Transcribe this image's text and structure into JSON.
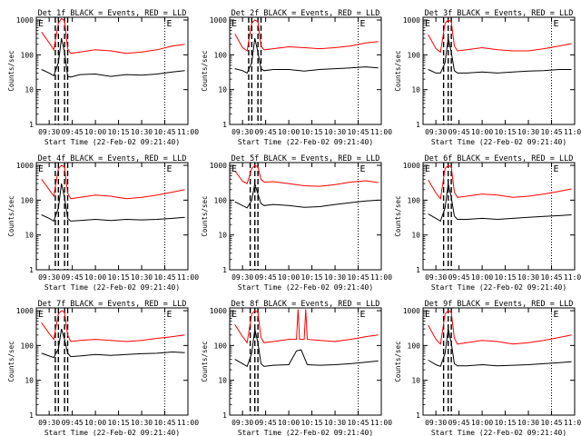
{
  "figure": {
    "xlabel": "Start Time (22-Feb-02 09:21:40)",
    "ylabel": "Counts/sec",
    "x_tick_labels": [
      "09:30",
      "09:45",
      "10:00",
      "10:15",
      "10:30",
      "10:45",
      "11:00"
    ],
    "y_tick_labels": [
      "1",
      "10",
      "100",
      "1000"
    ],
    "colors": {
      "events": "#000000",
      "lld": "#ff0000",
      "axes": "#000000",
      "background": "#ffffff"
    }
  },
  "chart_data": [
    {
      "type": "line",
      "title": "Det 1f BLACK = Events, RED = LLD",
      "ylog": true,
      "ylim": [
        1,
        1200
      ],
      "xlim": [
        "09:21:40",
        "11:00"
      ],
      "annotations": [
        "E",
        "E"
      ],
      "event_window": [
        "09:37",
        "09:42"
      ],
      "markers_dashed": [
        "09:34",
        "09:36",
        "09:40",
        "09:42"
      ],
      "markers_dotted": [
        "10:45"
      ],
      "series": [
        {
          "name": "Events",
          "x": [
            "09:25",
            "09:30",
            "09:33",
            "09:36",
            "09:38",
            "09:40",
            "09:42",
            "09:44",
            "09:50",
            "10:00",
            "10:10",
            "10:20",
            "10:30",
            "10:40",
            "10:50",
            "10:58"
          ],
          "values": [
            38,
            30,
            25,
            60,
            300,
            120,
            24,
            23,
            27,
            28,
            24,
            27,
            26,
            28,
            32,
            35
          ]
        },
        {
          "name": "LLD",
          "x": [
            "09:25",
            "09:30",
            "09:33",
            "09:36",
            "09:38",
            "09:40",
            "09:42",
            "09:44",
            "09:50",
            "10:00",
            "10:10",
            "10:20",
            "10:30",
            "10:40",
            "10:50",
            "10:58"
          ],
          "values": [
            450,
            220,
            140,
            800,
            1100,
            950,
            150,
            110,
            120,
            140,
            130,
            110,
            120,
            140,
            180,
            200
          ]
        }
      ]
    },
    {
      "type": "line",
      "title": "Det 2f BLACK = Events, RED = LLD",
      "ylog": true,
      "ylim": [
        1,
        1200
      ],
      "xlim": [
        "09:21:40",
        "11:00"
      ],
      "annotations": [
        "E",
        "E"
      ],
      "event_window": [
        "09:37",
        "09:42"
      ],
      "markers_dashed": [
        "09:34",
        "09:36",
        "09:40",
        "09:42"
      ],
      "markers_dotted": [
        "10:45"
      ],
      "series": [
        {
          "name": "Events",
          "x": [
            "09:25",
            "09:30",
            "09:33",
            "09:36",
            "09:38",
            "09:40",
            "09:42",
            "09:44",
            "09:50",
            "10:00",
            "10:10",
            "10:20",
            "10:30",
            "10:40",
            "10:50",
            "10:58"
          ],
          "values": [
            40,
            35,
            30,
            60,
            300,
            120,
            40,
            35,
            38,
            38,
            34,
            38,
            40,
            42,
            45,
            42
          ]
        },
        {
          "name": "LLD",
          "x": [
            "09:25",
            "09:30",
            "09:33",
            "09:36",
            "09:38",
            "09:40",
            "09:42",
            "09:44",
            "09:50",
            "10:00",
            "10:10",
            "10:20",
            "10:30",
            "10:40",
            "10:50",
            "10:58"
          ],
          "values": [
            400,
            160,
            130,
            800,
            1000,
            900,
            180,
            140,
            150,
            170,
            160,
            150,
            160,
            180,
            220,
            240
          ]
        }
      ]
    },
    {
      "type": "line",
      "title": "Det 3f BLACK = Events, RED = LLD",
      "ylog": true,
      "ylim": [
        1,
        1200
      ],
      "xlim": [
        "09:21:40",
        "11:00"
      ],
      "annotations": [
        "E",
        "E"
      ],
      "event_window": [
        "09:37",
        "09:42"
      ],
      "markers_dashed": [
        "09:35",
        "09:38",
        "09:40"
      ],
      "markers_dotted": [
        "10:45"
      ],
      "series": [
        {
          "name": "Events",
          "x": [
            "09:25",
            "09:30",
            "09:33",
            "09:36",
            "09:38",
            "09:40",
            "09:42",
            "09:44",
            "09:50",
            "10:00",
            "10:10",
            "10:20",
            "10:30",
            "10:40",
            "10:50",
            "10:58"
          ],
          "values": [
            38,
            30,
            30,
            60,
            300,
            120,
            35,
            30,
            30,
            32,
            30,
            32,
            34,
            35,
            38,
            38
          ]
        },
        {
          "name": "LLD",
          "x": [
            "09:25",
            "09:30",
            "09:33",
            "09:36",
            "09:38",
            "09:40",
            "09:42",
            "09:44",
            "09:50",
            "10:00",
            "10:10",
            "10:20",
            "10:30",
            "10:40",
            "10:50",
            "10:58"
          ],
          "values": [
            380,
            150,
            120,
            800,
            1000,
            900,
            180,
            130,
            140,
            160,
            140,
            130,
            130,
            150,
            180,
            210
          ]
        }
      ]
    },
    {
      "type": "line",
      "title": "Det 4f BLACK = Events, RED = LLD",
      "ylog": true,
      "ylim": [
        1,
        1200
      ],
      "xlim": [
        "09:21:40",
        "11:00"
      ],
      "annotations": [
        "E",
        "E"
      ],
      "event_window": [
        "09:37",
        "09:42"
      ],
      "markers_dashed": [
        "09:34",
        "09:36",
        "09:40",
        "09:42"
      ],
      "markers_dotted": [
        "10:45"
      ],
      "series": [
        {
          "name": "Events",
          "x": [
            "09:25",
            "09:30",
            "09:33",
            "09:36",
            "09:38",
            "09:40",
            "09:42",
            "09:44",
            "09:50",
            "10:00",
            "10:10",
            "10:20",
            "10:30",
            "10:40",
            "10:50",
            "10:58"
          ],
          "values": [
            38,
            30,
            25,
            60,
            300,
            120,
            30,
            25,
            26,
            28,
            26,
            28,
            27,
            28,
            30,
            32
          ]
        },
        {
          "name": "LLD",
          "x": [
            "09:25",
            "09:30",
            "09:33",
            "09:36",
            "09:38",
            "09:40",
            "09:42",
            "09:44",
            "09:50",
            "10:00",
            "10:10",
            "10:20",
            "10:30",
            "10:40",
            "10:50",
            "10:58"
          ],
          "values": [
            400,
            200,
            130,
            800,
            1000,
            900,
            160,
            110,
            120,
            140,
            130,
            110,
            120,
            140,
            170,
            200
          ]
        }
      ]
    },
    {
      "type": "line",
      "title": "Det 5f BLACK = Events, RED = LLD",
      "ylog": true,
      "ylim": [
        1,
        1200
      ],
      "xlim": [
        "09:21:40",
        "11:00"
      ],
      "annotations": [
        "E",
        "E"
      ],
      "event_window": [
        "09:37",
        "09:42"
      ],
      "markers_dashed": [
        "09:35",
        "09:38",
        "09:40"
      ],
      "markers_dotted": [
        "10:45"
      ],
      "series": [
        {
          "name": "Events",
          "x": [
            "09:25",
            "09:30",
            "09:33",
            "09:36",
            "09:38",
            "09:40",
            "09:42",
            "09:44",
            "09:50",
            "10:00",
            "10:10",
            "10:20",
            "10:30",
            "10:40",
            "10:50",
            "10:58"
          ],
          "values": [
            90,
            70,
            60,
            100,
            300,
            150,
            80,
            70,
            75,
            70,
            62,
            65,
            75,
            85,
            95,
            100
          ]
        },
        {
          "name": "LLD",
          "x": [
            "09:25",
            "09:30",
            "09:33",
            "09:36",
            "09:38",
            "09:40",
            "09:42",
            "09:44",
            "09:50",
            "10:00",
            "10:10",
            "10:20",
            "10:30",
            "10:40",
            "10:50",
            "10:58"
          ],
          "values": [
            700,
            350,
            300,
            800,
            1000,
            900,
            400,
            330,
            340,
            300,
            260,
            250,
            280,
            330,
            360,
            320
          ]
        }
      ]
    },
    {
      "type": "line",
      "title": "Det 6f BLACK = Events, RED = LLD",
      "ylog": true,
      "ylim": [
        1,
        1200
      ],
      "xlim": [
        "09:21:40",
        "11:00"
      ],
      "annotations": [
        "E",
        "E"
      ],
      "event_window": [
        "09:37",
        "09:42"
      ],
      "markers_dashed": [
        "09:35",
        "09:38",
        "09:40"
      ],
      "markers_dotted": [
        "10:45"
      ],
      "series": [
        {
          "name": "Events",
          "x": [
            "09:25",
            "09:30",
            "09:33",
            "09:36",
            "09:38",
            "09:40",
            "09:42",
            "09:44",
            "09:50",
            "10:00",
            "10:10",
            "10:20",
            "10:30",
            "10:40",
            "10:50",
            "10:58"
          ],
          "values": [
            40,
            30,
            25,
            60,
            300,
            120,
            35,
            28,
            28,
            30,
            28,
            30,
            32,
            34,
            36,
            38
          ]
        },
        {
          "name": "LLD",
          "x": [
            "09:25",
            "09:30",
            "09:33",
            "09:36",
            "09:38",
            "09:40",
            "09:42",
            "09:44",
            "09:50",
            "10:00",
            "10:10",
            "10:20",
            "10:30",
            "10:40",
            "10:50",
            "10:58"
          ],
          "values": [
            380,
            160,
            110,
            800,
            1000,
            900,
            170,
            120,
            130,
            150,
            140,
            120,
            130,
            150,
            180,
            210
          ]
        }
      ]
    },
    {
      "type": "line",
      "title": "Det 7f BLACK = Events, RED = LLD",
      "ylog": true,
      "ylim": [
        1,
        1200
      ],
      "xlim": [
        "09:21:40",
        "11:00"
      ],
      "annotations": [
        "E",
        "E"
      ],
      "event_window": [
        "09:37",
        "09:42"
      ],
      "markers_dashed": [
        "09:34",
        "09:36",
        "09:40",
        "09:42"
      ],
      "markers_dotted": [
        "10:45"
      ],
      "series": [
        {
          "name": "Events",
          "x": [
            "09:25",
            "09:30",
            "09:33",
            "09:36",
            "09:38",
            "09:40",
            "09:42",
            "09:44",
            "09:50",
            "10:00",
            "10:10",
            "10:20",
            "10:30",
            "10:40",
            "10:50",
            "10:58"
          ],
          "values": [
            60,
            50,
            45,
            80,
            300,
            150,
            60,
            48,
            50,
            55,
            52,
            55,
            58,
            60,
            65,
            62
          ]
        },
        {
          "name": "LLD",
          "x": [
            "09:25",
            "09:30",
            "09:33",
            "09:36",
            "09:38",
            "09:40",
            "09:42",
            "09:44",
            "09:50",
            "10:00",
            "10:10",
            "10:20",
            "10:30",
            "10:40",
            "10:50",
            "10:58"
          ],
          "values": [
            450,
            220,
            150,
            800,
            1000,
            900,
            200,
            130,
            140,
            150,
            140,
            130,
            140,
            160,
            180,
            200
          ]
        }
      ]
    },
    {
      "type": "line",
      "title": "Det 8f BLACK = Events, RED = LLD",
      "ylog": true,
      "ylim": [
        1,
        1200
      ],
      "xlim": [
        "09:21:40",
        "11:00"
      ],
      "annotations": [
        "E",
        "E"
      ],
      "event_window": [
        "09:37",
        "09:42"
      ],
      "markers_dashed": [
        "09:35",
        "09:38",
        "09:40"
      ],
      "markers_dotted": [
        "10:45"
      ],
      "series": [
        {
          "name": "Events",
          "x": [
            "09:25",
            "09:30",
            "09:33",
            "09:36",
            "09:38",
            "09:40",
            "09:42",
            "09:44",
            "09:50",
            "10:00",
            "10:05",
            "10:08",
            "10:12",
            "10:20",
            "10:30",
            "10:40",
            "10:50",
            "10:58"
          ],
          "values": [
            40,
            30,
            25,
            60,
            300,
            120,
            30,
            25,
            27,
            28,
            70,
            75,
            28,
            27,
            28,
            30,
            33,
            36
          ]
        },
        {
          "name": "LLD",
          "x": [
            "09:25",
            "09:30",
            "09:33",
            "09:36",
            "09:38",
            "09:40",
            "09:42",
            "09:44",
            "09:50",
            "10:00",
            "10:05",
            "10:06",
            "10:07",
            "10:10",
            "10:11",
            "10:12",
            "10:20",
            "10:30",
            "10:40",
            "10:50",
            "10:58"
          ],
          "values": [
            400,
            180,
            120,
            800,
            1000,
            900,
            170,
            120,
            130,
            150,
            150,
            1100,
            150,
            150,
            1100,
            150,
            140,
            130,
            150,
            180,
            200
          ]
        }
      ]
    },
    {
      "type": "line",
      "title": "Det 9f BLACK = Events, RED = LLD",
      "ylog": true,
      "ylim": [
        1,
        1200
      ],
      "xlim": [
        "09:21:40",
        "11:00"
      ],
      "annotations": [
        "E",
        "E"
      ],
      "event_window": [
        "09:37",
        "09:42"
      ],
      "markers_dashed": [
        "09:35",
        "09:38",
        "09:40"
      ],
      "markers_dotted": [
        "10:45"
      ],
      "series": [
        {
          "name": "Events",
          "x": [
            "09:25",
            "09:30",
            "09:33",
            "09:36",
            "09:38",
            "09:40",
            "09:42",
            "09:44",
            "09:50",
            "10:00",
            "10:10",
            "10:20",
            "10:30",
            "10:40",
            "10:50",
            "10:58"
          ],
          "values": [
            38,
            28,
            25,
            60,
            300,
            120,
            30,
            26,
            26,
            28,
            26,
            27,
            28,
            30,
            32,
            34
          ]
        },
        {
          "name": "LLD",
          "x": [
            "09:25",
            "09:30",
            "09:33",
            "09:36",
            "09:38",
            "09:40",
            "09:42",
            "09:44",
            "09:50",
            "10:00",
            "10:10",
            "10:20",
            "10:30",
            "10:40",
            "10:50",
            "10:58"
          ],
          "values": [
            380,
            150,
            110,
            800,
            1000,
            900,
            160,
            110,
            120,
            140,
            130,
            110,
            120,
            140,
            170,
            200
          ]
        }
      ]
    }
  ]
}
